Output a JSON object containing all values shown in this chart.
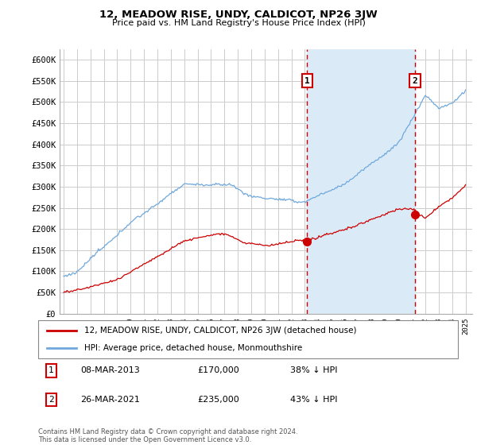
{
  "title": "12, MEADOW RISE, UNDY, CALDICOT, NP26 3JW",
  "subtitle": "Price paid vs. HM Land Registry's House Price Index (HPI)",
  "ylim": [
    0,
    625000
  ],
  "yticks": [
    0,
    50000,
    100000,
    150000,
    200000,
    250000,
    300000,
    350000,
    400000,
    450000,
    500000,
    550000,
    600000
  ],
  "sale1_x": 2013.18,
  "sale1_price": 170000,
  "sale2_x": 2021.23,
  "sale2_price": 235000,
  "hpi_color": "#6fa8dc",
  "hpi_fill_color": "#dbeaf7",
  "sale_color": "#cc0000",
  "vline_color": "#cc0000",
  "grid_color": "#cccccc",
  "background_color": "#ffffff",
  "legend_label_sale": "12, MEADOW RISE, UNDY, CALDICOT, NP26 3JW (detached house)",
  "legend_label_hpi": "HPI: Average price, detached house, Monmouthshire",
  "footer": "Contains HM Land Registry data © Crown copyright and database right 2024.\nThis data is licensed under the Open Government Licence v3.0.",
  "transaction_table": [
    {
      "num": "1",
      "date": "08-MAR-2013",
      "price": "£170,000",
      "pct": "38% ↓ HPI"
    },
    {
      "num": "2",
      "date": "26-MAR-2021",
      "price": "£235,000",
      "pct": "43% ↓ HPI"
    }
  ],
  "xmin": 1995,
  "xmax": 2025
}
